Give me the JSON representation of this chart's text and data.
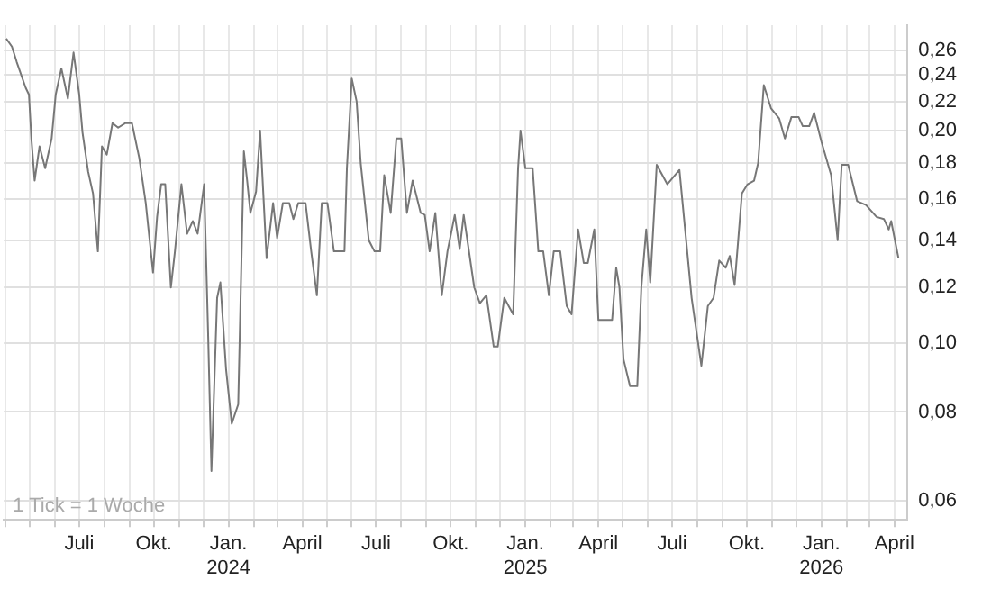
{
  "chart_data": {
    "type": "line",
    "annotations": [
      "1 Tick = 1 Woche"
    ],
    "log": "y",
    "grid": true,
    "legend": false,
    "marker": "none",
    "line_style": "solid",
    "xlim": [
      "2023-03-30",
      "2026-04-17"
    ],
    "xticks": [
      {
        "value": "2023-04-01",
        "label": null
      },
      {
        "value": "2023-05-01",
        "label": null
      },
      {
        "value": "2023-06-01",
        "label": null
      },
      {
        "value": "2023-07-01",
        "label": "Juli"
      },
      {
        "value": "2023-08-01",
        "label": null
      },
      {
        "value": "2023-09-01",
        "label": null
      },
      {
        "value": "2023-10-01",
        "label": "Okt."
      },
      {
        "value": "2023-11-01",
        "label": null
      },
      {
        "value": "2023-12-01",
        "label": null
      },
      {
        "value": "2024-01-01",
        "label": "Jan.\n2024"
      },
      {
        "value": "2024-02-01",
        "label": null
      },
      {
        "value": "2024-03-01",
        "label": null
      },
      {
        "value": "2024-04-01",
        "label": "April"
      },
      {
        "value": "2024-05-01",
        "label": null
      },
      {
        "value": "2024-06-01",
        "label": null
      },
      {
        "value": "2024-07-01",
        "label": "Juli"
      },
      {
        "value": "2024-08-01",
        "label": null
      },
      {
        "value": "2024-09-01",
        "label": null
      },
      {
        "value": "2024-10-01",
        "label": "Okt."
      },
      {
        "value": "2024-11-01",
        "label": null
      },
      {
        "value": "2024-12-01",
        "label": null
      },
      {
        "value": "2025-01-01",
        "label": "Jan.\n2025"
      },
      {
        "value": "2025-02-01",
        "label": null
      },
      {
        "value": "2025-03-01",
        "label": null
      },
      {
        "value": "2025-04-01",
        "label": "April"
      },
      {
        "value": "2025-05-01",
        "label": null
      },
      {
        "value": "2025-06-01",
        "label": null
      },
      {
        "value": "2025-07-01",
        "label": "Juli"
      },
      {
        "value": "2025-08-01",
        "label": null
      },
      {
        "value": "2025-09-01",
        "label": null
      },
      {
        "value": "2025-10-01",
        "label": "Okt."
      },
      {
        "value": "2025-11-01",
        "label": null
      },
      {
        "value": "2025-12-01",
        "label": null
      },
      {
        "value": "2026-01-01",
        "label": "Jan.\n2026"
      },
      {
        "value": "2026-02-01",
        "label": null
      },
      {
        "value": "2026-03-01",
        "label": null
      },
      {
        "value": "2026-04-01",
        "label": "April"
      }
    ],
    "ylim": [
      0.0563,
      0.282
    ],
    "yticks": [
      {
        "value": 0.06,
        "label": "0,06"
      },
      {
        "value": 0.08,
        "label": "0,08"
      },
      {
        "value": 0.1,
        "label": "0,10"
      },
      {
        "value": 0.12,
        "label": "0,12"
      },
      {
        "value": 0.14,
        "label": "0,14"
      },
      {
        "value": 0.16,
        "label": "0,16"
      },
      {
        "value": 0.18,
        "label": "0,18"
      },
      {
        "value": 0.2,
        "label": "0,20"
      },
      {
        "value": 0.22,
        "label": "0,22"
      },
      {
        "value": 0.24,
        "label": "0,24"
      },
      {
        "value": 0.26,
        "label": "0,26"
      }
    ],
    "series": [
      {
        "color": "#777777",
        "x": [
          "2023-04-02",
          "2023-04-09",
          "2023-04-15",
          "2023-04-26",
          "2023-04-30",
          "2023-05-03",
          "2023-05-07",
          "2023-05-13",
          "2023-05-20",
          "2023-05-28",
          "2023-06-02",
          "2023-06-09",
          "2023-06-17",
          "2023-06-24",
          "2023-07-01",
          "2023-07-05",
          "2023-07-12",
          "2023-07-18",
          "2023-07-24",
          "2023-07-29",
          "2023-08-04",
          "2023-08-11",
          "2023-08-18",
          "2023-08-27",
          "2023-09-04",
          "2023-09-13",
          "2023-09-21",
          "2023-09-30",
          "2023-10-05",
          "2023-10-10",
          "2023-10-15",
          "2023-10-22",
          "2023-10-27",
          "2023-11-04",
          "2023-11-11",
          "2023-11-18",
          "2023-11-24",
          "2023-12-02",
          "2023-12-07",
          "2023-12-11",
          "2023-12-18",
          "2023-12-22",
          "2023-12-29",
          "2024-01-05",
          "2024-01-13",
          "2024-01-20",
          "2024-01-24",
          "2024-01-28",
          "2024-02-04",
          "2024-02-09",
          "2024-02-17",
          "2024-02-25",
          "2024-03-01",
          "2024-03-08",
          "2024-03-16",
          "2024-03-21",
          "2024-03-27",
          "2024-04-05",
          "2024-04-12",
          "2024-04-19",
          "2024-04-25",
          "2024-05-02",
          "2024-05-10",
          "2024-05-23",
          "2024-05-26",
          "2024-06-01",
          "2024-06-07",
          "2024-06-12",
          "2024-06-22",
          "2024-06-29",
          "2024-07-06",
          "2024-07-11",
          "2024-07-19",
          "2024-07-26",
          "2024-08-01",
          "2024-08-08",
          "2024-08-15",
          "2024-08-25",
          "2024-08-30",
          "2024-09-05",
          "2024-09-12",
          "2024-09-20",
          "2024-09-27",
          "2024-10-06",
          "2024-10-12",
          "2024-10-17",
          "2024-10-30",
          "2024-11-06",
          "2024-11-14",
          "2024-11-23",
          "2024-11-28",
          "2024-12-06",
          "2024-12-17",
          "2024-12-23",
          "2024-12-26",
          "2025-01-01",
          "2025-01-10",
          "2025-01-17",
          "2025-01-23",
          "2025-01-30",
          "2025-02-05",
          "2025-02-13",
          "2025-02-21",
          "2025-02-27",
          "2025-03-07",
          "2025-03-14",
          "2025-03-19",
          "2025-03-27",
          "2025-04-01",
          "2025-04-18",
          "2025-04-23",
          "2025-04-27",
          "2025-05-02",
          "2025-05-10",
          "2025-05-19",
          "2025-05-24",
          "2025-05-30",
          "2025-06-04",
          "2025-06-12",
          "2025-06-25",
          "2025-07-10",
          "2025-07-25",
          "2025-08-06",
          "2025-08-14",
          "2025-08-21",
          "2025-08-28",
          "2025-09-05",
          "2025-09-10",
          "2025-09-16",
          "2025-09-25",
          "2025-10-02",
          "2025-10-10",
          "2025-10-15",
          "2025-10-22",
          "2025-10-31",
          "2025-11-10",
          "2025-11-17",
          "2025-11-25",
          "2025-12-04",
          "2025-12-09",
          "2025-12-17",
          "2025-12-23",
          "2026-01-01",
          "2026-01-13",
          "2026-01-21",
          "2026-01-26",
          "2026-02-03",
          "2026-02-14",
          "2026-02-25",
          "2026-03-10",
          "2026-03-19",
          "2026-03-25",
          "2026-03-28",
          "2026-04-06"
        ],
        "values": [
          0.27,
          0.263,
          0.25,
          0.23,
          0.225,
          0.195,
          0.17,
          0.19,
          0.177,
          0.195,
          0.225,
          0.245,
          0.222,
          0.258,
          0.225,
          0.199,
          0.175,
          0.163,
          0.135,
          0.19,
          0.185,
          0.205,
          0.202,
          0.205,
          0.205,
          0.183,
          0.158,
          0.126,
          0.151,
          0.168,
          0.168,
          0.12,
          0.135,
          0.168,
          0.143,
          0.149,
          0.143,
          0.168,
          0.102,
          0.066,
          0.116,
          0.122,
          0.092,
          0.077,
          0.082,
          0.187,
          0.17,
          0.153,
          0.164,
          0.2,
          0.132,
          0.158,
          0.141,
          0.158,
          0.158,
          0.15,
          0.158,
          0.158,
          0.135,
          0.117,
          0.158,
          0.158,
          0.135,
          0.135,
          0.177,
          0.237,
          0.22,
          0.18,
          0.14,
          0.135,
          0.135,
          0.173,
          0.153,
          0.195,
          0.195,
          0.153,
          0.17,
          0.153,
          0.152,
          0.135,
          0.153,
          0.117,
          0.135,
          0.152,
          0.136,
          0.152,
          0.12,
          0.114,
          0.117,
          0.099,
          0.099,
          0.116,
          0.11,
          0.177,
          0.2,
          0.177,
          0.177,
          0.135,
          0.135,
          0.117,
          0.135,
          0.135,
          0.113,
          0.11,
          0.145,
          0.13,
          0.13,
          0.145,
          0.108,
          0.108,
          0.128,
          0.12,
          0.095,
          0.087,
          0.087,
          0.12,
          0.145,
          0.122,
          0.179,
          0.168,
          0.176,
          0.116,
          0.093,
          0.113,
          0.116,
          0.131,
          0.128,
          0.133,
          0.121,
          0.163,
          0.168,
          0.17,
          0.18,
          0.232,
          0.215,
          0.208,
          0.195,
          0.209,
          0.209,
          0.203,
          0.203,
          0.212,
          0.193,
          0.173,
          0.14,
          0.179,
          0.179,
          0.159,
          0.157,
          0.151,
          0.15,
          0.145,
          0.149,
          0.132
        ]
      }
    ]
  }
}
